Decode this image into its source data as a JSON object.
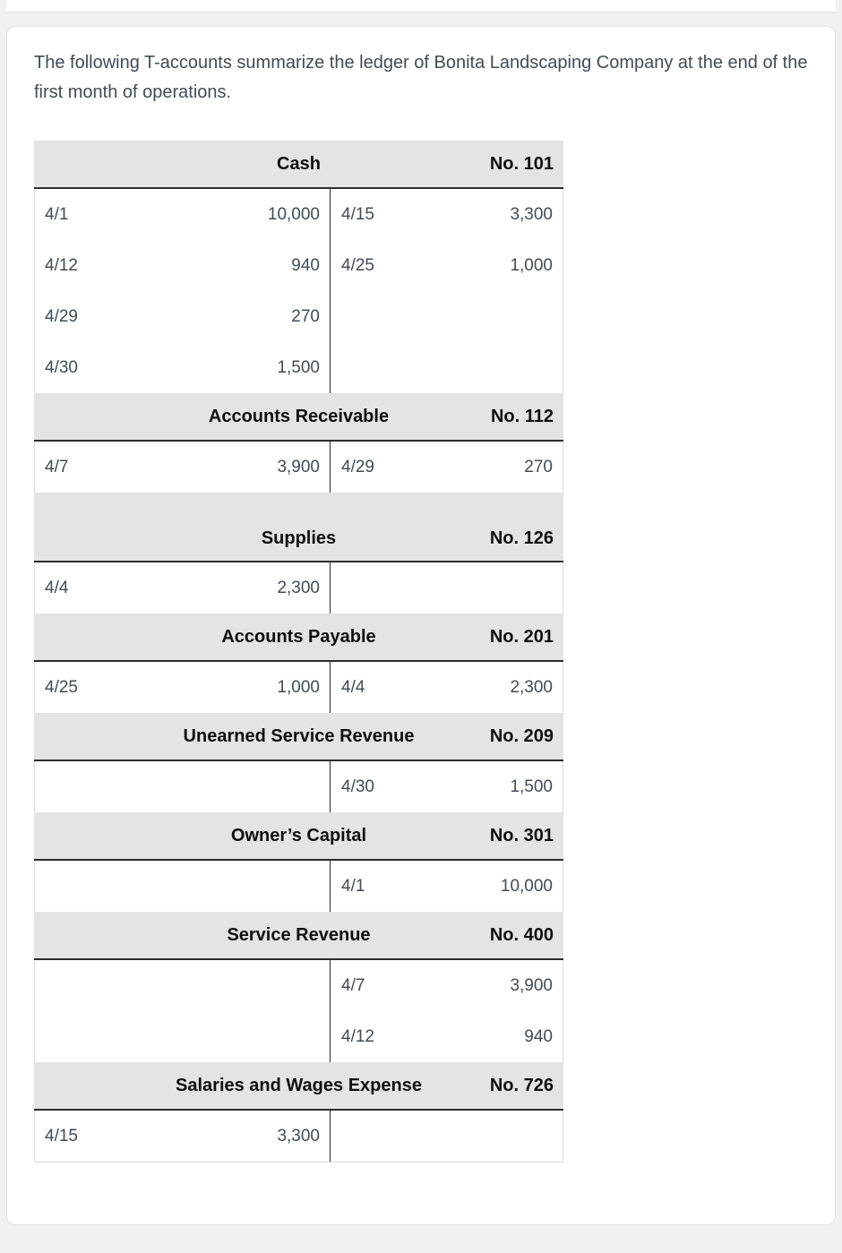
{
  "intro": "The following T-accounts summarize the ledger of Bonita Landscaping Company at the end of the first month of operations.",
  "colors": {
    "page_background": "#f1f1ef",
    "card_background": "#ffffff",
    "header_background": "#e4e4e2",
    "rule_dark": "#2c2c2c",
    "rule_light": "#dcdcdc",
    "text": "#3f4c56",
    "header_text": "#0f0f0f"
  },
  "accounts": [
    {
      "title": "Cash",
      "number": "No. 101",
      "tall_header": false,
      "debits": [
        {
          "date": "4/1",
          "amount": "10,000"
        },
        {
          "date": "4/12",
          "amount": "940"
        },
        {
          "date": "4/29",
          "amount": "270"
        },
        {
          "date": "4/30",
          "amount": "1,500"
        }
      ],
      "credits": [
        {
          "date": "4/15",
          "amount": "3,300"
        },
        {
          "date": "4/25",
          "amount": "1,000"
        }
      ]
    },
    {
      "title": "Accounts Receivable",
      "number": "No. 112",
      "tall_header": false,
      "debits": [
        {
          "date": "4/7",
          "amount": "3,900"
        }
      ],
      "credits": [
        {
          "date": "4/29",
          "amount": "270"
        }
      ]
    },
    {
      "title": "Supplies",
      "number": "No. 126",
      "tall_header": true,
      "debits": [
        {
          "date": "4/4",
          "amount": "2,300"
        }
      ],
      "credits": []
    },
    {
      "title": "Accounts Payable",
      "number": "No. 201",
      "tall_header": false,
      "debits": [
        {
          "date": "4/25",
          "amount": "1,000"
        }
      ],
      "credits": [
        {
          "date": "4/4",
          "amount": "2,300"
        }
      ]
    },
    {
      "title": "Unearned Service Revenue",
      "number": "No. 209",
      "tall_header": false,
      "debits": [],
      "credits": [
        {
          "date": "4/30",
          "amount": "1,500"
        }
      ]
    },
    {
      "title": "Owner’s Capital",
      "number": "No. 301",
      "tall_header": false,
      "debits": [],
      "credits": [
        {
          "date": "4/1",
          "amount": "10,000"
        }
      ]
    },
    {
      "title": "Service Revenue",
      "number": "No. 400",
      "tall_header": false,
      "debits": [],
      "credits": [
        {
          "date": "4/7",
          "amount": "3,900"
        },
        {
          "date": "4/12",
          "amount": "940"
        }
      ]
    },
    {
      "title": "Salaries and Wages Expense",
      "number": "No. 726",
      "tall_header": false,
      "debits": [
        {
          "date": "4/15",
          "amount": "3,300"
        }
      ],
      "credits": []
    }
  ]
}
